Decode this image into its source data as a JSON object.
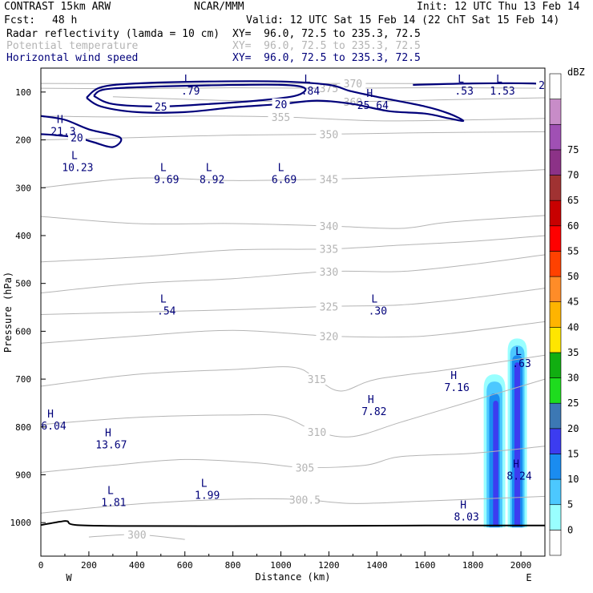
{
  "header": {
    "model": "CONTRAST 15km ARW",
    "center": "NCAR/MMM",
    "init": "Init: 12 UTC Thu 13 Feb 14",
    "fcst_label": "Fcst:",
    "fcst_value": "48 h",
    "valid": "Valid: 12 UTC Sat 15 Feb 14 (22 ChT Sat 15 Feb 14)",
    "fields": [
      {
        "name": "Radar reflectivity (lamda = 10 cm)",
        "xy": "XY=  96.0, 72.5 to 235.3, 72.5",
        "color": "#000000"
      },
      {
        "name": "Potential temperature",
        "xy": "XY=  96.0, 72.5 to 235.3, 72.5",
        "color": "#b4b4b4"
      },
      {
        "name": "Horizontal wind speed",
        "xy": "XY=  96.0, 72.5 to 235.3, 72.5",
        "color": "#00007a"
      }
    ]
  },
  "chart_data": {
    "type": "cross-section",
    "xlabel": "Distance (km)",
    "ylabel": "Pressure (hPa)",
    "xlim": [
      0,
      2100
    ],
    "ylim": [
      1070,
      50
    ],
    "x_ticks": [
      0,
      200,
      400,
      600,
      800,
      1000,
      1200,
      1400,
      1600,
      1800,
      2000
    ],
    "y_ticks": [
      100,
      200,
      300,
      400,
      500,
      600,
      700,
      800,
      900,
      1000
    ],
    "axis_end_labels": {
      "left": "W",
      "right": "E"
    },
    "colorbar": {
      "unit": "dBZ",
      "levels": [
        0,
        5,
        10,
        15,
        20,
        25,
        30,
        35,
        40,
        45,
        50,
        55,
        60,
        65,
        70,
        75
      ],
      "colors": [
        "#ffffff",
        "#99ffff",
        "#4cc8ff",
        "#1a8cf0",
        "#3c3cf0",
        "#3c78b4",
        "#1edc1e",
        "#11ae11",
        "#ffe600",
        "#ffb400",
        "#ff8c28",
        "#ff4100",
        "#ff0000",
        "#c80000",
        "#a03232",
        "#8c3287",
        "#a050b4",
        "#c88cc8",
        "#ffffff"
      ]
    },
    "theta_contours": [
      {
        "label": "375",
        "points": [
          [
            0,
            92
          ],
          [
            400,
            93
          ],
          [
            800,
            91
          ],
          [
            1200,
            92
          ],
          [
            1600,
            91
          ],
          [
            2100,
            92
          ]
        ]
      },
      {
        "label": "370",
        "points": [
          [
            0,
            82
          ],
          [
            600,
            83
          ],
          [
            1300,
            82
          ],
          [
            2100,
            83
          ]
        ]
      },
      {
        "label": "360",
        "points": [
          [
            300,
            110
          ],
          [
            800,
            118
          ],
          [
            1300,
            120
          ],
          [
            1700,
            116
          ],
          [
            2100,
            112
          ]
        ]
      },
      {
        "label": "355",
        "points": [
          [
            0,
            150
          ],
          [
            300,
            152
          ],
          [
            650,
            150
          ],
          [
            1000,
            152
          ],
          [
            1400,
            160
          ],
          [
            1800,
            158
          ],
          [
            2100,
            155
          ]
        ]
      },
      {
        "label": "350",
        "points": [
          [
            0,
            200
          ],
          [
            400,
            195
          ],
          [
            800,
            190
          ],
          [
            1200,
            188
          ],
          [
            1600,
            185
          ],
          [
            2100,
            183
          ]
        ]
      },
      {
        "label": "345",
        "points": [
          [
            0,
            300
          ],
          [
            400,
            280
          ],
          [
            800,
            285
          ],
          [
            1200,
            282
          ],
          [
            1600,
            275
          ],
          [
            2100,
            262
          ]
        ]
      },
      {
        "label": "340",
        "points": [
          [
            0,
            360
          ],
          [
            400,
            375
          ],
          [
            800,
            375
          ],
          [
            1200,
            380
          ],
          [
            1500,
            385
          ],
          [
            1700,
            372
          ],
          [
            2100,
            358
          ]
        ]
      },
      {
        "label": "335",
        "points": [
          [
            0,
            455
          ],
          [
            400,
            445
          ],
          [
            800,
            430
          ],
          [
            1200,
            428
          ],
          [
            1500,
            420
          ],
          [
            1800,
            412
          ],
          [
            2100,
            400
          ]
        ]
      },
      {
        "label": "330",
        "points": [
          [
            0,
            520
          ],
          [
            400,
            500
          ],
          [
            800,
            490
          ],
          [
            1200,
            475
          ],
          [
            1500,
            475
          ],
          [
            1800,
            460
          ],
          [
            2100,
            440
          ]
        ]
      },
      {
        "label": "325",
        "points": [
          [
            0,
            565
          ],
          [
            400,
            560
          ],
          [
            800,
            555
          ],
          [
            1200,
            548
          ],
          [
            1500,
            545
          ],
          [
            1800,
            530
          ],
          [
            2100,
            510
          ]
        ]
      },
      {
        "label": "320",
        "points": [
          [
            0,
            625
          ],
          [
            400,
            610
          ],
          [
            800,
            598
          ],
          [
            1200,
            610
          ],
          [
            1500,
            612
          ],
          [
            1700,
            605
          ],
          [
            2100,
            580
          ]
        ]
      },
      {
        "label": "315",
        "points": [
          [
            0,
            715
          ],
          [
            400,
            690
          ],
          [
            800,
            680
          ],
          [
            1050,
            675
          ],
          [
            1150,
            700
          ],
          [
            1250,
            725
          ],
          [
            1400,
            700
          ],
          [
            1700,
            680
          ],
          [
            2100,
            650
          ]
        ]
      },
      {
        "label": "310",
        "points": [
          [
            0,
            795
          ],
          [
            400,
            780
          ],
          [
            800,
            775
          ],
          [
            1000,
            778
          ],
          [
            1150,
            810
          ],
          [
            1300,
            820
          ],
          [
            1500,
            790
          ],
          [
            1800,
            745
          ],
          [
            2100,
            700
          ]
        ]
      },
      {
        "label": "305",
        "points": [
          [
            0,
            895
          ],
          [
            300,
            880
          ],
          [
            600,
            868
          ],
          [
            900,
            875
          ],
          [
            1100,
            885
          ],
          [
            1350,
            880
          ],
          [
            1500,
            862
          ],
          [
            1800,
            855
          ],
          [
            2100,
            840
          ]
        ]
      },
      {
        "label": "300.5",
        "points": [
          [
            0,
            980
          ],
          [
            300,
            965
          ],
          [
            600,
            955
          ],
          [
            900,
            950
          ],
          [
            1100,
            952
          ],
          [
            1300,
            960
          ],
          [
            1600,
            955
          ],
          [
            2100,
            945
          ]
        ]
      },
      {
        "label": "300",
        "points": [
          [
            200,
            1030
          ],
          [
            400,
            1025
          ],
          [
            600,
            1035
          ]
        ]
      }
    ],
    "wind_contours": [
      {
        "label": "25",
        "points": [
          [
            220,
            108
          ],
          [
            260,
            95
          ],
          [
            400,
            90
          ],
          [
            700,
            86
          ],
          [
            1000,
            85
          ],
          [
            1100,
            92
          ],
          [
            1060,
            108
          ],
          [
            900,
            118
          ],
          [
            700,
            125
          ],
          [
            500,
            130
          ],
          [
            300,
            125
          ],
          [
            220,
            108
          ]
        ]
      },
      {
        "label": "20",
        "points": [
          [
            190,
            112
          ],
          [
            250,
            90
          ],
          [
            400,
            82
          ],
          [
            700,
            78
          ],
          [
            1000,
            78
          ],
          [
            1200,
            85
          ],
          [
            1290,
            98
          ],
          [
            1400,
            110
          ],
          [
            1600,
            130
          ],
          [
            1700,
            145
          ],
          [
            1760,
            160
          ],
          [
            1700,
            155
          ],
          [
            1600,
            145
          ],
          [
            1450,
            140
          ],
          [
            1300,
            125
          ],
          [
            1150,
            118
          ],
          [
            1000,
            125
          ],
          [
            800,
            132
          ],
          [
            600,
            142
          ],
          [
            400,
            142
          ],
          [
            250,
            130
          ],
          [
            190,
            112
          ]
        ]
      },
      {
        "label": "20",
        "points": [
          [
            1550,
            85
          ],
          [
            1800,
            82
          ],
          [
            2050,
            82
          ],
          [
            2100,
            85
          ]
        ]
      },
      {
        "label": "20",
        "points": [
          [
            0,
            150
          ],
          [
            100,
            158
          ],
          [
            200,
            178
          ],
          [
            330,
            195
          ],
          [
            300,
            215
          ],
          [
            220,
            205
          ],
          [
            150,
            195
          ],
          [
            60,
            190
          ],
          [
            0,
            188
          ]
        ]
      }
    ],
    "reflectivity_cells": [
      {
        "x": 1890,
        "top": 690,
        "bottom": 1010,
        "half_width": 45,
        "color": "#99ffff"
      },
      {
        "x": 1985,
        "top": 615,
        "bottom": 1010,
        "half_width": 40,
        "color": "#99ffff"
      },
      {
        "x": 1890,
        "top": 705,
        "bottom": 1010,
        "half_width": 33,
        "color": "#4cc8ff"
      },
      {
        "x": 1985,
        "top": 630,
        "bottom": 1010,
        "half_width": 30,
        "color": "#4cc8ff"
      },
      {
        "x": 1890,
        "top": 730,
        "bottom": 1010,
        "half_width": 22,
        "color": "#1a8cf0"
      },
      {
        "x": 1985,
        "top": 650,
        "bottom": 1010,
        "half_width": 22,
        "color": "#1a8cf0"
      },
      {
        "x": 1895,
        "top": 745,
        "bottom": 1005,
        "half_width": 11,
        "color": "#3c3cf0"
      },
      {
        "x": 1985,
        "top": 665,
        "bottom": 1005,
        "half_width": 12,
        "color": "#3c3cf0"
      }
    ],
    "extrema": [
      {
        "x": 610,
        "p": 80,
        "type": "L",
        "value": ".79"
      },
      {
        "x": 1110,
        "p": 80,
        "type": "L",
        "value": ".84"
      },
      {
        "x": 1750,
        "p": 80,
        "type": "L",
        "value": ".53"
      },
      {
        "x": 1910,
        "p": 80,
        "type": "L",
        "value": "1.53"
      },
      {
        "x": 1370,
        "p": 110,
        "type": "H",
        "value": "25.64"
      },
      {
        "x": 80,
        "p": 165,
        "type": "H",
        "value": "21.3"
      },
      {
        "x": 140,
        "p": 240,
        "type": "L",
        "value": "10.23"
      },
      {
        "x": 510,
        "p": 265,
        "type": "L",
        "value": "9.69"
      },
      {
        "x": 700,
        "p": 265,
        "type": "L",
        "value": "8.92"
      },
      {
        "x": 1000,
        "p": 265,
        "type": "L",
        "value": "6.69"
      },
      {
        "x": 510,
        "p": 540,
        "type": "L",
        "value": ".54"
      },
      {
        "x": 1390,
        "p": 540,
        "type": "L",
        "value": ".30"
      },
      {
        "x": 1990,
        "p": 650,
        "type": "L",
        "value": ".63"
      },
      {
        "x": 1720,
        "p": 700,
        "type": "H",
        "value": "7.16"
      },
      {
        "x": 1375,
        "p": 750,
        "type": "H",
        "value": "7.82"
      },
      {
        "x": 0,
        "p": 780,
        "type": "H",
        "value": "6.04"
      },
      {
        "x": 280,
        "p": 820,
        "type": "H",
        "value": "13.67"
      },
      {
        "x": 290,
        "p": 940,
        "type": "L",
        "value": "1.81"
      },
      {
        "x": 680,
        "p": 925,
        "type": "L",
        "value": "1.99"
      },
      {
        "x": 1980,
        "p": 885,
        "type": "H",
        "value": "8.24"
      },
      {
        "x": 1760,
        "p": 970,
        "type": "H",
        "value": "8.03"
      }
    ],
    "surface": [
      [
        0,
        1005
      ],
      [
        80,
        998
      ],
      [
        110,
        997
      ],
      [
        150,
        1005
      ],
      [
        400,
        1007
      ],
      [
        1000,
        1007
      ],
      [
        1600,
        1006
      ],
      [
        2100,
        1006
      ]
    ]
  }
}
